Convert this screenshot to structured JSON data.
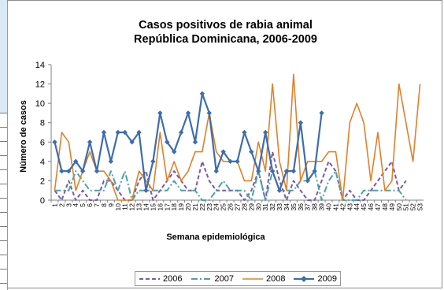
{
  "chart_data": {
    "type": "line",
    "title_line1": "Casos positivos de rabia animal",
    "title_line2": "República Dominicana, 2006-2009",
    "xlabel": "Semana epidemiológica",
    "ylabel": "Número de casos",
    "ylim": [
      0,
      14
    ],
    "yticks": [
      "0",
      "2",
      "4",
      "6",
      "8",
      "10",
      "12",
      "14"
    ],
    "categories": [
      "1",
      "2",
      "3",
      "4",
      "5",
      "6",
      "7",
      "8",
      "9",
      "10",
      "11",
      "12",
      "13",
      "14",
      "15",
      "16",
      "17",
      "18",
      "19",
      "20",
      "21",
      "22",
      "23",
      "24",
      "25",
      "26",
      "27",
      "28",
      "29",
      "30",
      "31",
      "32",
      "33",
      "34",
      "35",
      "36",
      "37",
      "38",
      "39",
      "40",
      "41",
      "42",
      "43",
      "44",
      "45",
      "46",
      "47",
      "48",
      "49",
      "50",
      "51",
      "52",
      "53"
    ],
    "series": [
      {
        "name": "2006",
        "color": "#7a5aa3",
        "style": "dash",
        "values": [
          1,
          0,
          2,
          0,
          1,
          0,
          0,
          2,
          2,
          1,
          0,
          0,
          2,
          3,
          0,
          1,
          2,
          3,
          2,
          1,
          1,
          4,
          2,
          1,
          1,
          1,
          1,
          0,
          1,
          3,
          0,
          5,
          2,
          0,
          2,
          1,
          0,
          0,
          2,
          4,
          3,
          0,
          1,
          0,
          0,
          1,
          2,
          3,
          4,
          1,
          2,
          null,
          null
        ]
      },
      {
        "name": "2007",
        "color": "#4ba3a8",
        "style": "dashdot",
        "values": [
          1,
          1,
          1,
          3,
          2,
          1,
          1,
          1,
          3,
          1,
          3,
          0,
          1,
          1,
          1,
          1,
          1,
          2,
          1,
          1,
          1,
          0,
          0,
          1,
          2,
          1,
          1,
          1,
          0,
          3,
          0,
          3,
          1,
          1,
          1,
          2,
          2,
          3,
          0,
          2,
          3,
          0,
          0,
          0,
          1,
          1,
          1,
          1,
          1,
          1,
          0,
          null,
          null
        ]
      },
      {
        "name": "2008",
        "color": "#e0802a",
        "style": "solid",
        "values": [
          1,
          7,
          6,
          1,
          3,
          5,
          3,
          3,
          2,
          0,
          0,
          0,
          3,
          2,
          1,
          7,
          2,
          4,
          2,
          3,
          5,
          5,
          9,
          5,
          4,
          4,
          4,
          2,
          2,
          6,
          3,
          12,
          4,
          1,
          13,
          2,
          4,
          4,
          4,
          5,
          5,
          0,
          8,
          10,
          8,
          2,
          7,
          1,
          2,
          12,
          8,
          4,
          12
        ]
      },
      {
        "name": "2009",
        "color": "#3d6dac",
        "style": "marker",
        "values": [
          6,
          3,
          3,
          4,
          3,
          6,
          3,
          7,
          4,
          7,
          7,
          6,
          7,
          1,
          4,
          9,
          6,
          5,
          7,
          9,
          6,
          11,
          9,
          3,
          5,
          4,
          4,
          7,
          5,
          3,
          7,
          3,
          1,
          3,
          3,
          8,
          2,
          3,
          9,
          null,
          null,
          null,
          null,
          null,
          null,
          null,
          null,
          null,
          null,
          null,
          null,
          null,
          null
        ]
      }
    ]
  }
}
